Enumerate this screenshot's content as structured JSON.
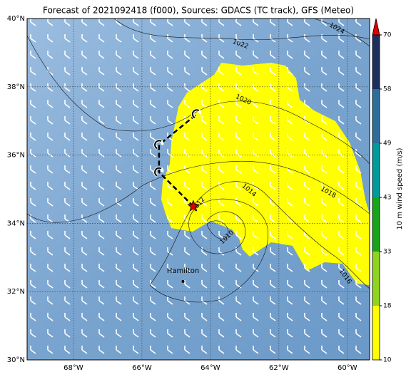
{
  "title": "Forecast of 2021092418 (f000), Sources: GDACS (TC track), GFS (Meteo)",
  "map": {
    "xlim": [
      -69.354,
      -59.35
    ],
    "ylim": [
      30,
      40
    ],
    "xticks": [
      {
        "value": -68,
        "label": "68°W"
      },
      {
        "value": -66,
        "label": "66°W"
      },
      {
        "value": -64,
        "label": "64°W"
      },
      {
        "value": -62,
        "label": "62°W"
      },
      {
        "value": -60,
        "label": "60°W"
      }
    ],
    "yticks": [
      {
        "value": 30,
        "label": "30°N"
      },
      {
        "value": 32,
        "label": "32°N"
      },
      {
        "value": 34,
        "label": "34°N"
      },
      {
        "value": 36,
        "label": "36°N"
      },
      {
        "value": 38,
        "label": "38°N"
      },
      {
        "value": 40,
        "label": "40°N"
      }
    ],
    "contour_labels": [
      1024,
      1022,
      1020,
      1018,
      1016,
      1014,
      1012,
      1010
    ],
    "track": {
      "lon": [
        -64.5,
        -65.5,
        -65.5,
        -64.4
      ],
      "lat": [
        34.5,
        35.5,
        36.3,
        37.2
      ],
      "color": "#000000",
      "current_color": "#e00000"
    },
    "city": {
      "name": "Hamilton",
      "lon": -64.8,
      "lat": 32.3
    },
    "high_wind_color": "#ffff00"
  },
  "colorbar": {
    "levels": [
      10,
      18,
      33,
      43,
      49,
      58,
      70
    ],
    "colors": [
      "#ffff00",
      "#8fd41f",
      "#18a418",
      "#009a9a",
      "#2d6d9c",
      "#1e2e5c"
    ],
    "extend_color": "#e00000",
    "label": "10 m wind speed (m/s)"
  }
}
